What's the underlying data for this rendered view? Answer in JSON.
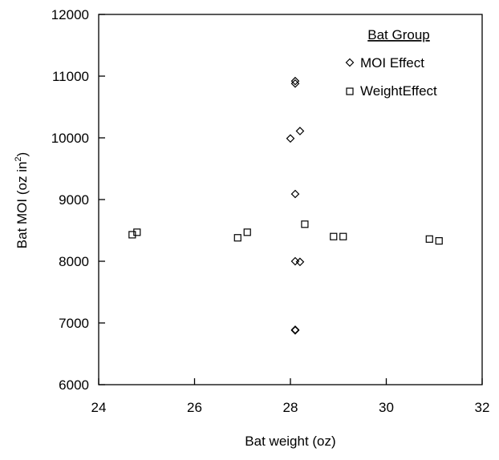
{
  "chart_data": {
    "type": "scatter",
    "xlabel": "Bat weight (oz)",
    "ylabel_main": "Bat MOI (oz in",
    "ylabel_sup": "2",
    "ylabel_close": ")",
    "xlim": [
      24,
      32
    ],
    "ylim": [
      6000,
      12000
    ],
    "x_ticks": [
      "24",
      "26",
      "28",
      "30",
      "32"
    ],
    "y_ticks": [
      "6000",
      "7000",
      "8000",
      "9000",
      "10000",
      "11000",
      "12000"
    ],
    "grid": false,
    "legend": {
      "title": "Bat Group",
      "placement": "top-right"
    },
    "series": [
      {
        "name": "MOI Effect",
        "marker": "diamond",
        "points": [
          {
            "x": 28.1,
            "y": 10920
          },
          {
            "x": 28.1,
            "y": 10880
          },
          {
            "x": 28.2,
            "y": 10110
          },
          {
            "x": 28.0,
            "y": 9990
          },
          {
            "x": 28.1,
            "y": 9090
          },
          {
            "x": 28.1,
            "y": 8000
          },
          {
            "x": 28.2,
            "y": 7990
          },
          {
            "x": 28.1,
            "y": 6890
          },
          {
            "x": 28.1,
            "y": 6880
          }
        ]
      },
      {
        "name": "WeightEffect",
        "marker": "square",
        "points": [
          {
            "x": 24.7,
            "y": 8430
          },
          {
            "x": 24.8,
            "y": 8470
          },
          {
            "x": 26.9,
            "y": 8380
          },
          {
            "x": 27.1,
            "y": 8470
          },
          {
            "x": 28.3,
            "y": 8600
          },
          {
            "x": 28.9,
            "y": 8400
          },
          {
            "x": 29.1,
            "y": 8400
          },
          {
            "x": 30.9,
            "y": 8360
          },
          {
            "x": 31.1,
            "y": 8330
          }
        ]
      }
    ]
  }
}
